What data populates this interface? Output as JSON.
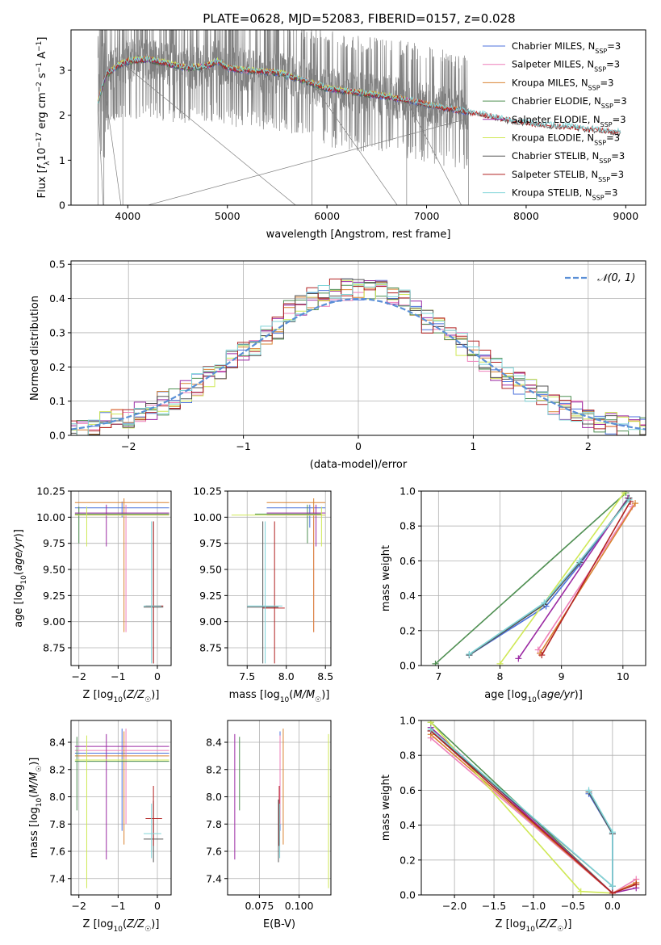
{
  "figure": {
    "title": "PLATE=0628, MJD=52083, FIBERID=0157, z=0.028"
  },
  "colors": {
    "Chabrier MILES": "#4c72dc",
    "Salpeter MILES": "#ee7fb9",
    "Kroupa MILES": "#d98332",
    "Chabrier ELODIE": "#4f8f52",
    "Salpeter ELODIE": "#9b2aa3",
    "Kroupa ELODIE": "#cfe856",
    "Chabrier STELIB": "#555555",
    "Salpeter STELIB": "#b22222",
    "Kroupa STELIB": "#7fd4d8",
    "data": "#808080",
    "gauss": "#5a8fd6"
  },
  "chart_data": [
    {
      "id": "spectrum",
      "type": "line",
      "xlabel": "wavelength [Angstrom, rest frame]",
      "ylabel": "Flux [f_λ 10^-17 erg cm^-2 s^-1 A^-1]",
      "xlim": [
        3430,
        9200
      ],
      "ylim": [
        0,
        3.9
      ],
      "xticks": [
        4000,
        5000,
        6000,
        7000,
        8000,
        9000
      ],
      "yticks": [
        0,
        1,
        2,
        3
      ],
      "grid": false,
      "legend_position": "top-right",
      "legend": [
        {
          "model": "Chabrier MILES",
          "label": "Chabrier MILES, N",
          "sub": "SSP",
          "suffix": "=3"
        },
        {
          "model": "Salpeter MILES",
          "label": "Salpeter MILES, N",
          "sub": "SSP",
          "suffix": "=3"
        },
        {
          "model": "Kroupa MILES",
          "label": "Kroupa MILES, N",
          "sub": "SSP",
          "suffix": "=3"
        },
        {
          "model": "Chabrier ELODIE",
          "label": "Chabrier ELODIE, N",
          "sub": "SSP",
          "suffix": "=3"
        },
        {
          "model": "Salpeter ELODIE",
          "label": "Salpeter ELODIE, N",
          "sub": "SSP",
          "suffix": "=3"
        },
        {
          "model": "Kroupa ELODIE",
          "label": "Kroupa ELODIE, N",
          "sub": "SSP",
          "suffix": "=3"
        },
        {
          "model": "Chabrier STELIB",
          "label": "Chabrier STELIB, N",
          "sub": "SSP",
          "suffix": "=3"
        },
        {
          "model": "Salpeter STELIB",
          "label": "Salpeter STELIB, N",
          "sub": "SSP",
          "suffix": "=3"
        },
        {
          "model": "Kroupa STELIB",
          "label": "Kroupa STELIB, N",
          "sub": "SSP",
          "suffix": "=3"
        }
      ],
      "data_range": [
        3700,
        7420
      ],
      "model_continuum": [
        [
          3700,
          2.3
        ],
        [
          3780,
          2.9
        ],
        [
          3900,
          3.1
        ],
        [
          4000,
          3.2
        ],
        [
          4200,
          3.25
        ],
        [
          4400,
          3.15
        ],
        [
          4600,
          3.05
        ],
        [
          4800,
          3.1
        ],
        [
          4900,
          3.2
        ],
        [
          5000,
          3.05
        ],
        [
          5200,
          3.0
        ],
        [
          5500,
          2.95
        ],
        [
          5800,
          2.75
        ],
        [
          6000,
          2.6
        ],
        [
          6300,
          2.5
        ],
        [
          6600,
          2.42
        ],
        [
          6900,
          2.3
        ],
        [
          7200,
          2.15
        ],
        [
          7500,
          2.05
        ],
        [
          7800,
          1.9
        ],
        [
          8100,
          1.8
        ],
        [
          8400,
          1.75
        ],
        [
          8700,
          1.68
        ],
        [
          8950,
          1.62
        ]
      ],
      "model_xmax": {
        "MILES": 7420,
        "ELODIE": 6800,
        "STELIB": 8950
      },
      "dropouts": [
        3700,
        3760,
        3950,
        5850,
        6800,
        7420
      ]
    },
    {
      "id": "residuals",
      "type": "bar",
      "xlabel": "(data-model)/error",
      "ylabel": "Normed distribution",
      "xlim": [
        -2.5,
        2.5
      ],
      "ylim": [
        0,
        0.51
      ],
      "xticks": [
        -2,
        -1,
        0,
        1,
        2
      ],
      "yticks": [
        0.0,
        0.1,
        0.2,
        0.3,
        0.4,
        0.5
      ],
      "grid": true,
      "legend_position": "top-right",
      "legend": "𝒩(0, 1)",
      "bin_width": 0.1
    },
    {
      "id": "age-Z",
      "type": "scatter",
      "xlabel": "Z [log10(Z/Z☉)]",
      "ylabel": "age [log10(age/yr)]",
      "xlim": [
        -2.2,
        0.35
      ],
      "ylim": [
        8.58,
        10.25
      ],
      "xticks": [
        -2,
        -1,
        0
      ],
      "yticks": [
        8.75,
        9.0,
        9.25,
        9.5,
        9.75,
        10.0,
        10.25
      ],
      "grid": true
    },
    {
      "id": "age-mass",
      "type": "scatter",
      "xlabel": "mass [log10(M/M☉)]",
      "ylabel": "",
      "xlim": [
        7.25,
        8.57
      ],
      "ylim": [
        8.58,
        10.25
      ],
      "xticks": [
        7.5,
        8.0,
        8.5
      ],
      "yticks": [
        8.75,
        9.0,
        9.25,
        9.5,
        9.75,
        10.0,
        10.25
      ],
      "grid": true
    },
    {
      "id": "weight-age",
      "type": "line",
      "xlabel": "age [log10(age/yr)]",
      "ylabel": "mass weight",
      "xlim": [
        6.72,
        10.37
      ],
      "ylim": [
        0,
        1.0
      ],
      "xticks": [
        7,
        8,
        9,
        10
      ],
      "yticks": [
        0.0,
        0.2,
        0.4,
        0.6,
        0.8,
        1.0
      ],
      "grid": true,
      "series": [
        {
          "model": "Chabrier MILES",
          "x": [
            7.5,
            8.75,
            9.3,
            10.1
          ],
          "y": [
            0.06,
            0.34,
            0.58,
            0.96
          ]
        },
        {
          "model": "Salpeter MILES",
          "x": [
            8.62,
            10.15
          ],
          "y": [
            0.09,
            0.91
          ]
        },
        {
          "model": "Kroupa MILES",
          "x": [
            8.65,
            10.2
          ],
          "y": [
            0.07,
            0.93
          ]
        },
        {
          "model": "Chabrier ELODIE",
          "x": [
            6.95,
            10.05
          ],
          "y": [
            0.01,
            0.99
          ]
        },
        {
          "model": "Salpeter ELODIE",
          "x": [
            8.3,
            10.08
          ],
          "y": [
            0.04,
            0.96
          ]
        },
        {
          "model": "Kroupa ELODIE",
          "x": [
            8.0,
            10.02
          ],
          "y": [
            0.01,
            0.99
          ]
        },
        {
          "model": "Chabrier STELIB",
          "x": [
            7.5,
            8.72,
            9.3,
            10.1
          ],
          "y": [
            0.06,
            0.35,
            0.59,
            0.96
          ]
        },
        {
          "model": "Salpeter STELIB",
          "x": [
            8.68,
            10.12
          ],
          "y": [
            0.06,
            0.94
          ]
        },
        {
          "model": "Kroupa STELIB",
          "x": [
            7.5,
            8.72,
            9.3,
            10.1
          ],
          "y": [
            0.065,
            0.36,
            0.6,
            0.95
          ]
        }
      ]
    },
    {
      "id": "mass-Z",
      "type": "scatter",
      "xlabel": "Z [log10(Z/Z☉)]",
      "ylabel": "mass [log10(M/M☉)]",
      "xlim": [
        -2.2,
        0.35
      ],
      "ylim": [
        7.28,
        8.56
      ],
      "xticks": [
        -2,
        -1,
        0
      ],
      "yticks": [
        7.4,
        7.6,
        7.8,
        8.0,
        8.2,
        8.4
      ],
      "grid": true
    },
    {
      "id": "mass-EBV",
      "type": "scatter",
      "xlabel": "E(B-V)",
      "ylabel": "",
      "xlim": [
        0.055,
        0.12
      ],
      "ylim": [
        7.28,
        8.56
      ],
      "xticks": [
        0.075,
        0.1
      ],
      "xtick_labels": [
        "0.075",
        "0.100"
      ],
      "yticks": [
        7.4,
        7.6,
        7.8,
        8.0,
        8.2,
        8.4
      ],
      "grid": true
    },
    {
      "id": "weight-Z",
      "type": "line",
      "xlabel": "Z [log10(Z/Z☉)]",
      "ylabel": "mass weight",
      "xlim": [
        -2.42,
        0.42
      ],
      "ylim": [
        0,
        1.0
      ],
      "xticks": [
        -2.0,
        -1.5,
        -1.0,
        -0.5,
        0.0
      ],
      "yticks": [
        0.0,
        0.2,
        0.4,
        0.6,
        0.8,
        1.0
      ],
      "grid": true,
      "series": [
        {
          "model": "Chabrier MILES",
          "x": [
            -2.3,
            0.0,
            0.0,
            -0.3
          ],
          "y": [
            0.94,
            0.01,
            0.35,
            0.58
          ]
        },
        {
          "model": "Salpeter MILES",
          "x": [
            -2.3,
            0.0,
            0.3
          ],
          "y": [
            0.9,
            0.01,
            0.09
          ]
        },
        {
          "model": "Kroupa MILES",
          "x": [
            -2.3,
            0.0,
            0.3
          ],
          "y": [
            0.92,
            0.01,
            0.07
          ]
        },
        {
          "model": "Chabrier ELODIE",
          "x": [
            -2.3,
            0.0
          ],
          "y": [
            0.99,
            0.01
          ]
        },
        {
          "model": "Salpeter ELODIE",
          "x": [
            -2.3,
            0.0,
            0.3
          ],
          "y": [
            0.96,
            0.01,
            0.04
          ]
        },
        {
          "model": "Kroupa ELODIE",
          "x": [
            -2.3,
            -0.4,
            0.0
          ],
          "y": [
            0.99,
            0.02,
            0.01
          ]
        },
        {
          "model": "Chabrier STELIB",
          "x": [
            -2.3,
            0.0,
            0.0,
            -0.3
          ],
          "y": [
            0.94,
            0.05,
            0.35,
            0.59
          ]
        },
        {
          "model": "Salpeter STELIB",
          "x": [
            -2.3,
            0.0,
            0.3
          ],
          "y": [
            0.94,
            0.01,
            0.06
          ]
        },
        {
          "model": "Kroupa STELIB",
          "x": [
            -2.3,
            0.0,
            0.0,
            -0.3
          ],
          "y": [
            0.95,
            0.05,
            0.36,
            0.6
          ]
        }
      ]
    }
  ],
  "errorbars": {
    "age-Z": [
      {
        "model": "Chabrier MILES",
        "x": -0.9,
        "y": 10.09,
        "xl": -2.1,
        "xh": 0.3,
        "yl": 10.0,
        "yh": 10.15
      },
      {
        "model": "Salpeter MILES",
        "x": -0.8,
        "y": 10.02,
        "xl": -2.1,
        "xh": 0.3,
        "yl": 8.9,
        "yh": 10.12
      },
      {
        "model": "Kroupa MILES",
        "x": -0.85,
        "y": 10.14,
        "xl": -2.1,
        "xh": 0.3,
        "yl": 8.9,
        "yh": 10.18
      },
      {
        "model": "Chabrier ELODIE",
        "x": -2.0,
        "y": 10.03,
        "xl": -2.1,
        "xh": 0.3,
        "yl": 9.75,
        "yh": 10.1
      },
      {
        "model": "Salpeter ELODIE",
        "x": -1.3,
        "y": 10.04,
        "xl": -2.1,
        "xh": 0.3,
        "yl": 9.72,
        "yh": 10.12
      },
      {
        "model": "Kroupa ELODIE",
        "x": -1.8,
        "y": 10.02,
        "xl": -2.1,
        "xh": 0.3,
        "yl": 9.72,
        "yh": 10.1
      },
      {
        "model": "Chabrier STELIB",
        "x": -0.1,
        "y": 9.14,
        "xl": -0.35,
        "xh": 0.15,
        "yl": 8.6,
        "yh": 9.96
      },
      {
        "model": "Salpeter STELIB",
        "x": -0.1,
        "y": 9.15,
        "xl": -0.3,
        "xh": 0.15,
        "yl": 8.6,
        "yh": 9.96
      },
      {
        "model": "Kroupa STELIB",
        "x": -0.15,
        "y": 9.15,
        "xl": -0.35,
        "xh": 0.1,
        "yl": 8.6,
        "yh": 9.96
      }
    ],
    "age-mass": [
      {
        "model": "Chabrier MILES",
        "x": 8.3,
        "y": 10.09,
        "xl": 7.75,
        "xh": 8.5,
        "yl": 9.9,
        "yh": 10.12
      },
      {
        "model": "Salpeter MILES",
        "x": 8.35,
        "y": 10.02,
        "xl": 7.75,
        "xh": 8.5,
        "yl": 8.9,
        "yh": 10.1
      },
      {
        "model": "Kroupa MILES",
        "x": 8.35,
        "y": 10.14,
        "xl": 7.75,
        "xh": 8.5,
        "yl": 8.9,
        "yh": 10.18
      },
      {
        "model": "Chabrier ELODIE",
        "x": 8.27,
        "y": 10.03,
        "xl": 7.6,
        "xh": 8.45,
        "yl": 9.75,
        "yh": 10.12
      },
      {
        "model": "Salpeter ELODIE",
        "x": 8.38,
        "y": 10.04,
        "xl": 7.75,
        "xh": 8.5,
        "yl": 9.72,
        "yh": 10.12
      },
      {
        "model": "Kroupa ELODIE",
        "x": 8.45,
        "y": 10.02,
        "xl": 7.3,
        "xh": 8.5,
        "yl": 9.72,
        "yh": 10.1
      },
      {
        "model": "Chabrier STELIB",
        "x": 7.7,
        "y": 9.14,
        "xl": 7.5,
        "xh": 7.9,
        "yl": 8.6,
        "yh": 9.96
      },
      {
        "model": "Salpeter STELIB",
        "x": 7.85,
        "y": 9.13,
        "xl": 7.7,
        "xh": 7.98,
        "yl": 8.6,
        "yh": 9.96
      },
      {
        "model": "Kroupa STELIB",
        "x": 7.73,
        "y": 9.15,
        "xl": 7.5,
        "xh": 7.95,
        "yl": 8.6,
        "yh": 9.96
      }
    ],
    "mass-Z": [
      {
        "model": "Chabrier MILES",
        "x": -0.9,
        "y": 8.32,
        "xl": -2.1,
        "xh": 0.3,
        "yl": 7.75,
        "yh": 8.5
      },
      {
        "model": "Salpeter MILES",
        "x": -0.8,
        "y": 8.34,
        "xl": -2.1,
        "xh": 0.3,
        "yl": 7.8,
        "yh": 8.5
      },
      {
        "model": "Kroupa MILES",
        "x": -0.85,
        "y": 8.3,
        "xl": -2.1,
        "xh": 0.3,
        "yl": 7.65,
        "yh": 8.48
      },
      {
        "model": "Chabrier ELODIE",
        "x": -2.05,
        "y": 8.26,
        "xl": -2.1,
        "xh": 0.3,
        "yl": 7.9,
        "yh": 8.44
      },
      {
        "model": "Salpeter ELODIE",
        "x": -1.3,
        "y": 8.37,
        "xl": -2.1,
        "xh": 0.3,
        "yl": 7.54,
        "yh": 8.46
      },
      {
        "model": "Kroupa ELODIE",
        "x": -1.8,
        "y": 8.27,
        "xl": -2.1,
        "xh": 0.3,
        "yl": 7.33,
        "yh": 8.45
      },
      {
        "model": "Chabrier STELIB",
        "x": -0.1,
        "y": 7.69,
        "xl": -0.35,
        "xh": 0.15,
        "yl": 7.52,
        "yh": 7.97
      },
      {
        "model": "Salpeter STELIB",
        "x": -0.1,
        "y": 7.84,
        "xl": -0.3,
        "xh": 0.12,
        "yl": 7.64,
        "yh": 8.08
      },
      {
        "model": "Kroupa STELIB",
        "x": -0.15,
        "y": 7.73,
        "xl": -0.35,
        "xh": 0.1,
        "yl": 7.55,
        "yh": 7.95
      }
    ],
    "mass-EBV": [
      {
        "model": "Chabrier MILES",
        "x": 0.088,
        "y": 8.3,
        "yl": 7.75,
        "yh": 8.48
      },
      {
        "model": "Salpeter MILES",
        "x": 0.088,
        "y": 8.3,
        "yl": 7.8,
        "yh": 8.45
      },
      {
        "model": "Kroupa MILES",
        "x": 0.09,
        "y": 8.3,
        "yl": 7.65,
        "yh": 8.5
      },
      {
        "model": "Chabrier ELODIE",
        "x": 0.0625,
        "y": 8.26,
        "yl": 7.9,
        "yh": 8.44
      },
      {
        "model": "Salpeter ELODIE",
        "x": 0.0595,
        "y": 8.37,
        "yl": 7.54,
        "yh": 8.46
      },
      {
        "model": "Kroupa ELODIE",
        "x": 0.1185,
        "y": 8.2,
        "yl": 7.33,
        "yh": 8.46
      },
      {
        "model": "Chabrier STELIB",
        "x": 0.087,
        "y": 7.7,
        "yl": 7.52,
        "yh": 7.98
      },
      {
        "model": "Salpeter STELIB",
        "x": 0.0875,
        "y": 7.84,
        "yl": 7.64,
        "yh": 8.08
      },
      {
        "model": "Kroupa STELIB",
        "x": 0.0878,
        "y": 7.73,
        "yl": 7.55,
        "yh": 7.95
      }
    ]
  }
}
